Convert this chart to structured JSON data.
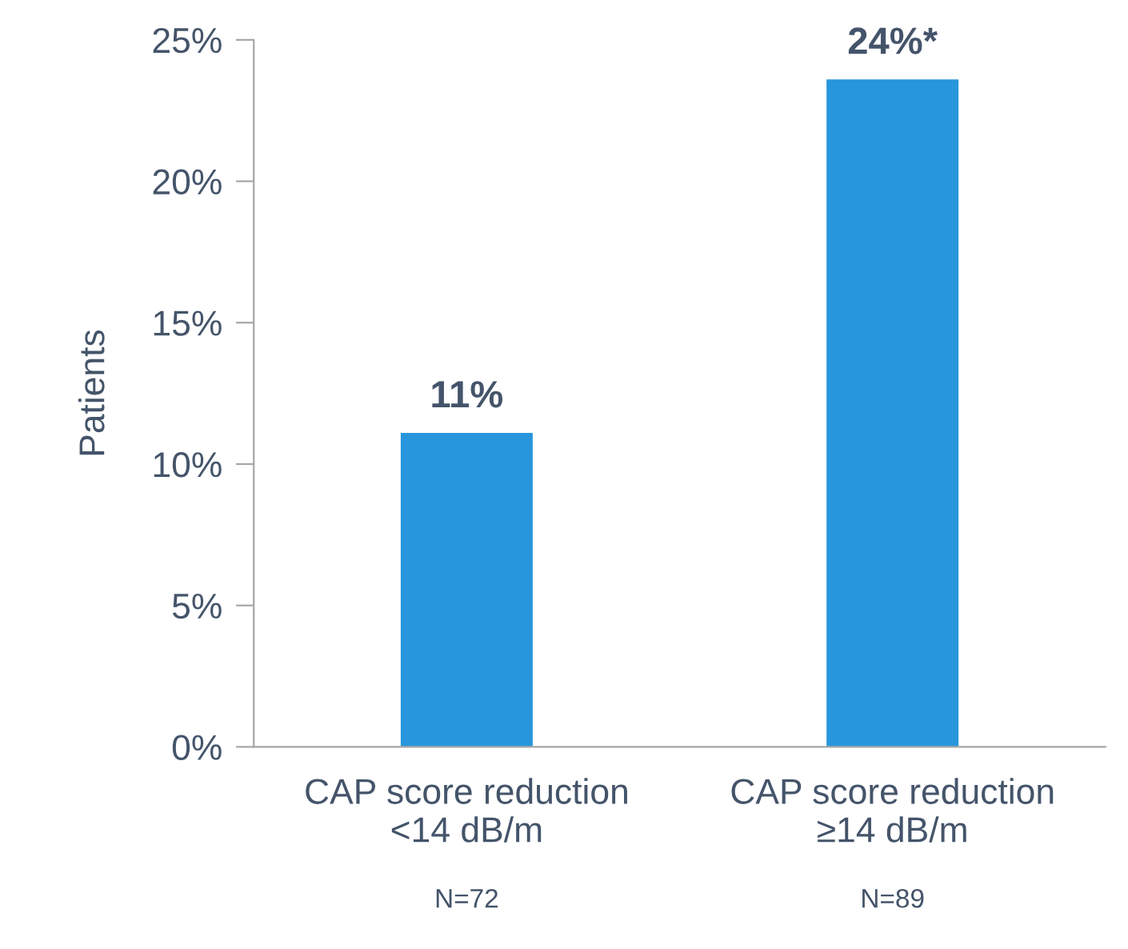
{
  "chart_data": {
    "type": "bar",
    "ylabel": "Patients",
    "categories": [
      "CAP score reduction\n<14 dB/m",
      "CAP score reduction\n≥14 dB/m"
    ],
    "values": [
      11.1,
      23.6
    ],
    "value_labels": [
      "11%",
      "24%*"
    ],
    "color": "#2896dc",
    "ylim": [
      0,
      25
    ],
    "yticks": [
      {
        "value": 0,
        "label": "0%"
      },
      {
        "value": 5,
        "label": "5%"
      },
      {
        "value": 10,
        "label": "10%"
      },
      {
        "value": 15,
        "label": "15%"
      },
      {
        "value": 20,
        "label": "20%"
      },
      {
        "value": 25,
        "label": "25%"
      }
    ],
    "annotations": [
      "N=72",
      "N=89"
    ],
    "grid": false,
    "legend": false
  }
}
